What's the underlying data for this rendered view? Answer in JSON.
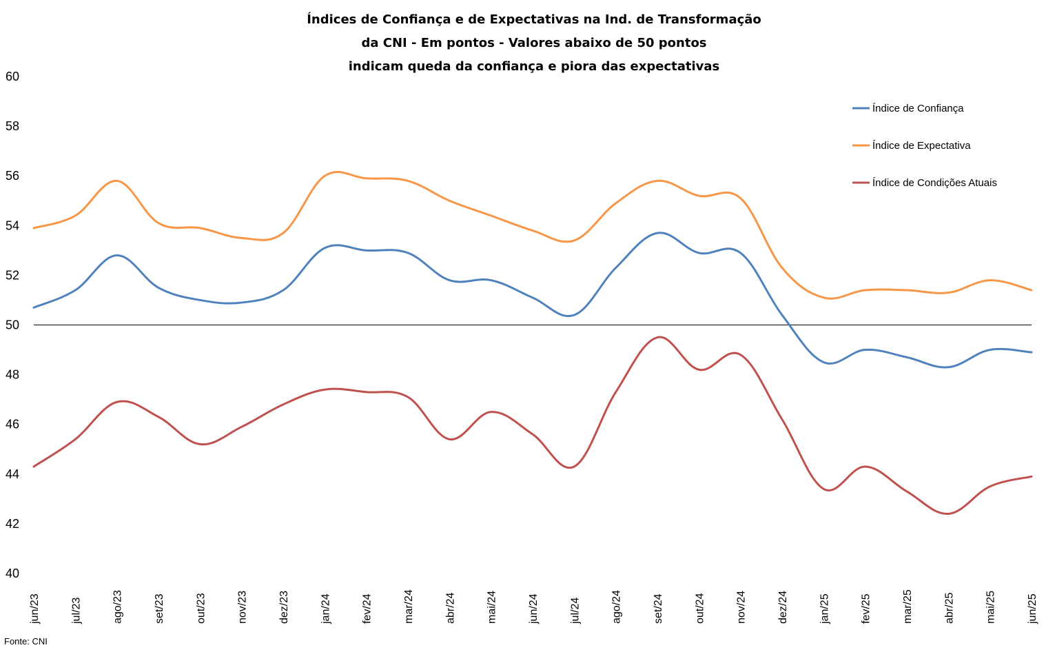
{
  "chart_data": {
    "type": "line",
    "title_lines": [
      "Índices de Confiança e de Expectativas na Ind. de Transformação",
      "da CNI - Em pontos - Valores abaixo de 50 pontos",
      "indicam queda da confiança e piora das expectativas"
    ],
    "categories": [
      "jun/23",
      "jul/23",
      "ago/23",
      "set/23",
      "out/23",
      "nov/23",
      "dez/23",
      "jan/24",
      "fev/24",
      "mar/24",
      "abr/24",
      "mai/24",
      "jun/24",
      "jul/24",
      "ago/24",
      "set/24",
      "out/24",
      "nov/24",
      "dez/24",
      "jan/25",
      "fev/25",
      "mar/25",
      "abr/25",
      "mai/25",
      "jun/25"
    ],
    "yticks": [
      "40",
      "42",
      "44",
      "46",
      "48",
      "50",
      "52",
      "54",
      "56",
      "58",
      "60"
    ],
    "ylim": [
      40,
      60
    ],
    "reference_line": 50,
    "series": [
      {
        "name": "Índice de Confiança",
        "color": "#4f81bd",
        "values": [
          50.7,
          51.4,
          52.8,
          51.5,
          51.0,
          50.9,
          51.4,
          53.1,
          53.0,
          52.9,
          51.8,
          51.8,
          51.1,
          50.4,
          52.3,
          53.7,
          52.9,
          52.9,
          50.4,
          48.5,
          49.0,
          48.7,
          48.3,
          49.0,
          48.9
        ]
      },
      {
        "name": "Índice de Expectativa",
        "color": "#f79646",
        "values": [
          53.9,
          54.4,
          55.8,
          54.1,
          53.9,
          53.5,
          53.7,
          56.0,
          55.9,
          55.8,
          55.0,
          54.4,
          53.8,
          53.4,
          54.9,
          55.8,
          55.2,
          55.1,
          52.3,
          51.1,
          51.4,
          51.4,
          51.3,
          51.8,
          51.4
        ]
      },
      {
        "name": "Índice de Condições Atuais",
        "color": "#c0504d",
        "values": [
          44.3,
          45.4,
          46.9,
          46.3,
          45.2,
          45.9,
          46.8,
          47.4,
          47.3,
          47.1,
          45.4,
          46.5,
          45.6,
          44.3,
          47.3,
          49.5,
          48.2,
          48.8,
          46.2,
          43.4,
          44.3,
          43.3,
          42.4,
          43.5,
          43.9
        ]
      }
    ],
    "legend_position": "top-right",
    "grid": false,
    "source": "Fonte: CNI"
  }
}
